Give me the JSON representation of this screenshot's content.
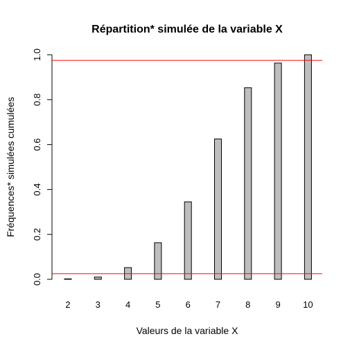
{
  "chart_data": {
    "type": "bar",
    "title": "Répartition* simulée de la variable X",
    "xlabel": "Valeurs de la variable X",
    "ylabel": "Fréquences* simulées cumulées",
    "categories": [
      "2",
      "3",
      "4",
      "5",
      "6",
      "7",
      "8",
      "9",
      "10"
    ],
    "values": [
      0.002,
      0.01,
      0.052,
      0.163,
      0.345,
      0.625,
      0.853,
      0.963,
      1.0
    ],
    "ylim": [
      0,
      1
    ],
    "yticks": [
      0.0,
      0.2,
      0.4,
      0.6,
      0.8,
      1.0
    ],
    "ytick_labels": [
      "0.0",
      "0.2",
      "0.4",
      "0.6",
      "0.8",
      "1.0"
    ],
    "reference_lines": [
      0.025,
      0.975
    ],
    "colors": {
      "bar_fill": "#bebebe",
      "bar_stroke": "#000000",
      "reference_line": "#ff0000"
    },
    "grid": false,
    "legend": "none"
  }
}
